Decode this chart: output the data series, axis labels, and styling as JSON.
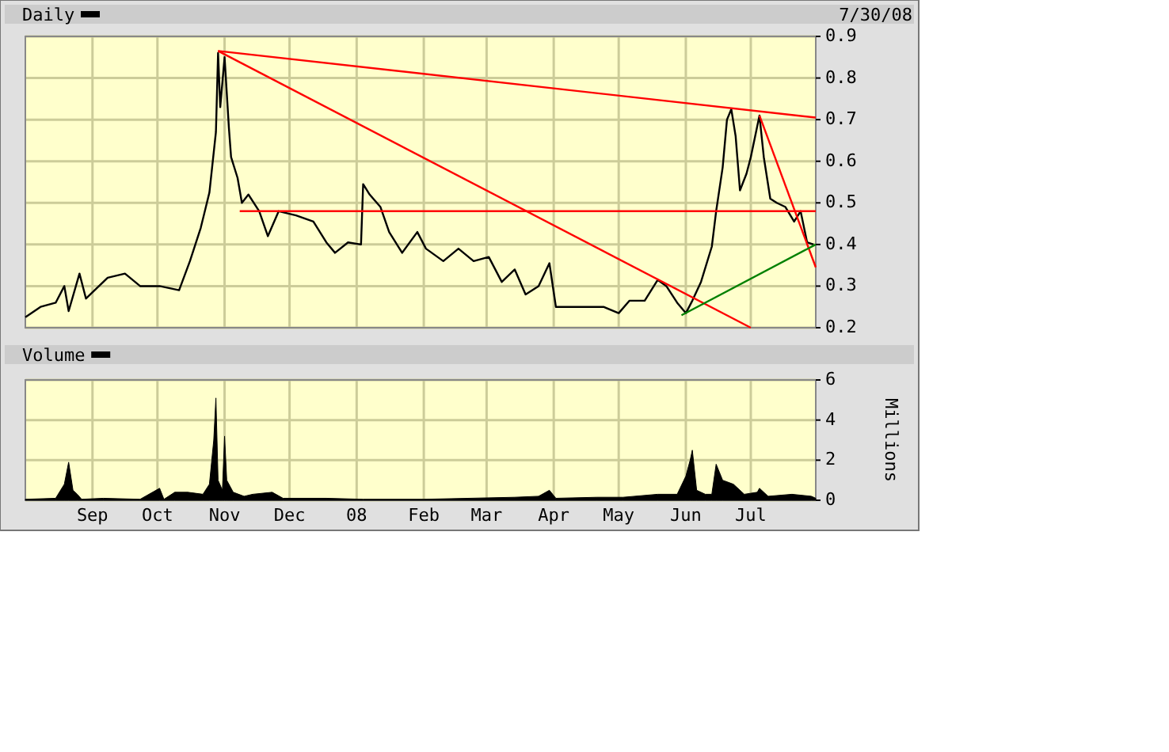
{
  "chart_data": [
    {
      "type": "line",
      "annotations": [
        "7/30/08"
      ],
      "legend": "top",
      "grid": true,
      "tick_labels": "y",
      "xlim": [
        "2007-08-01",
        "2008-07-31"
      ],
      "xticks": [
        {
          "value": "2007-09-01",
          "label": null
        },
        {
          "value": "2007-10-01",
          "label": null
        },
        {
          "value": "2007-11-01",
          "label": null
        },
        {
          "value": "2007-12-01",
          "label": null
        },
        {
          "value": "2008-01-01",
          "label": null
        },
        {
          "value": "2008-02-01",
          "label": null
        },
        {
          "value": "2008-03-01",
          "label": null
        },
        {
          "value": "2008-04-01",
          "label": null
        },
        {
          "value": "2008-05-01",
          "label": null
        },
        {
          "value": "2008-06-01",
          "label": null
        },
        {
          "value": "2008-07-01",
          "label": null
        }
      ],
      "ylim": [
        0.2,
        0.9
      ],
      "yticks": [
        0.2,
        0.3,
        0.4,
        0.5,
        0.6,
        0.7,
        0.8,
        0.9
      ],
      "series": [
        {
          "name": "Daily",
          "color": "#000000",
          "x": [
            "2007-08-01",
            "2007-08-08",
            "2007-08-15",
            "2007-08-19",
            "2007-08-21",
            "2007-08-26",
            "2007-08-29",
            "2007-09-08",
            "2007-09-16",
            "2007-09-23",
            "2007-10-02",
            "2007-10-11",
            "2007-10-16",
            "2007-10-21",
            "2007-10-25",
            "2007-10-28",
            "2007-10-29",
            "2007-10-30",
            "2007-11-01",
            "2007-11-03",
            "2007-11-04",
            "2007-11-07",
            "2007-11-09",
            "2007-11-12",
            "2007-11-17",
            "2007-11-21",
            "2007-11-26",
            "2007-12-04",
            "2007-12-12",
            "2007-12-18",
            "2007-12-22",
            "2007-12-28",
            "2008-01-03",
            "2008-01-04",
            "2008-01-07",
            "2008-01-12",
            "2008-01-16",
            "2008-01-22",
            "2008-01-29",
            "2008-02-02",
            "2008-02-10",
            "2008-02-17",
            "2008-02-24",
            "2008-03-02",
            "2008-03-08",
            "2008-03-14",
            "2008-03-19",
            "2008-03-25",
            "2008-03-30",
            "2008-04-02",
            "2008-04-09",
            "2008-04-17",
            "2008-04-24",
            "2008-05-01",
            "2008-05-06",
            "2008-05-13",
            "2008-05-19",
            "2008-05-23",
            "2008-05-28",
            "2008-06-01",
            "2008-06-04",
            "2008-06-08",
            "2008-06-13",
            "2008-06-15",
            "2008-06-18",
            "2008-06-20",
            "2008-06-22",
            "2008-06-24",
            "2008-06-26",
            "2008-06-29",
            "2008-07-01",
            "2008-07-05",
            "2008-07-07",
            "2008-07-10",
            "2008-07-13",
            "2008-07-17",
            "2008-07-21",
            "2008-07-24",
            "2008-07-27",
            "2008-07-30"
          ],
          "values": [
            0.225,
            0.25,
            0.26,
            0.3,
            0.24,
            0.33,
            0.27,
            0.32,
            0.33,
            0.3,
            0.3,
            0.29,
            0.36,
            0.44,
            0.525,
            0.67,
            0.86,
            0.73,
            0.85,
            0.68,
            0.61,
            0.56,
            0.5,
            0.52,
            0.48,
            0.42,
            0.48,
            0.47,
            0.455,
            0.405,
            0.38,
            0.405,
            0.4,
            0.545,
            0.52,
            0.49,
            0.43,
            0.38,
            0.43,
            0.39,
            0.36,
            0.39,
            0.36,
            0.37,
            0.31,
            0.34,
            0.28,
            0.3,
            0.355,
            0.25,
            0.25,
            0.25,
            0.25,
            0.235,
            0.265,
            0.265,
            0.315,
            0.3,
            0.26,
            0.235,
            0.265,
            0.31,
            0.395,
            0.48,
            0.585,
            0.7,
            0.725,
            0.66,
            0.53,
            0.57,
            0.61,
            0.71,
            0.61,
            0.51,
            0.5,
            0.49,
            0.455,
            0.48,
            0.405,
            0.4
          ]
        },
        {
          "type": "line",
          "color": "#ff0000",
          "x": [
            "2007-10-29",
            "2008-07-31"
          ],
          "values": [
            0.865,
            0.705
          ]
        },
        {
          "type": "line",
          "color": "#ff0000",
          "x": [
            "2007-10-29",
            "2008-07-01"
          ],
          "values": [
            0.865,
            0.2
          ]
        },
        {
          "type": "line",
          "color": "#ff0000",
          "x": [
            "2007-11-08",
            "2008-07-31"
          ],
          "values": [
            0.48,
            0.48
          ]
        },
        {
          "type": "line",
          "color": "#ff0000",
          "x": [
            "2008-07-05",
            "2008-07-31"
          ],
          "values": [
            0.71,
            0.345
          ]
        },
        {
          "type": "line",
          "color": "#008000",
          "x": [
            "2008-05-30",
            "2008-07-31"
          ],
          "values": [
            0.23,
            0.4
          ]
        }
      ]
    },
    {
      "type": "area",
      "legend": "top",
      "grid": true,
      "ylabel": "Millions",
      "xlim": [
        "2007-08-01",
        "2008-07-31"
      ],
      "xticks": [
        {
          "value": "2007-09-01",
          "label": "Sep"
        },
        {
          "value": "2007-10-01",
          "label": "Oct"
        },
        {
          "value": "2007-11-01",
          "label": "Nov"
        },
        {
          "value": "2007-12-01",
          "label": "Dec"
        },
        {
          "value": "2008-01-01",
          "label": "08"
        },
        {
          "value": "2008-02-01",
          "label": "Feb"
        },
        {
          "value": "2008-03-01",
          "label": "Mar"
        },
        {
          "value": "2008-04-01",
          "label": "Apr"
        },
        {
          "value": "2008-05-01",
          "label": "May"
        },
        {
          "value": "2008-06-01",
          "label": "Jun"
        },
        {
          "value": "2008-07-01",
          "label": "Jul"
        }
      ],
      "ylim": [
        0,
        6
      ],
      "yticks": [
        0,
        2,
        4,
        6
      ],
      "series": [
        {
          "name": "Volume",
          "color": "#000000",
          "x": [
            "2007-08-01",
            "2007-08-15",
            "2007-08-19",
            "2007-08-21",
            "2007-08-23",
            "2007-08-25",
            "2007-08-27",
            "2007-09-06",
            "2007-09-23",
            "2007-10-02",
            "2007-10-04",
            "2007-10-09",
            "2007-10-15",
            "2007-10-22",
            "2007-10-25",
            "2007-10-27",
            "2007-10-28",
            "2007-10-29",
            "2007-10-31",
            "2007-11-01",
            "2007-11-02",
            "2007-11-05",
            "2007-11-10",
            "2007-11-14",
            "2007-11-23",
            "2007-11-28",
            "2007-12-18",
            "2008-01-04",
            "2008-02-01",
            "2008-03-14",
            "2008-03-25",
            "2008-03-30",
            "2008-04-02",
            "2008-04-21",
            "2008-05-03",
            "2008-05-19",
            "2008-05-28",
            "2008-06-01",
            "2008-06-03",
            "2008-06-04",
            "2008-06-06",
            "2008-06-10",
            "2008-06-13",
            "2008-06-15",
            "2008-06-18",
            "2008-06-23",
            "2008-06-28",
            "2008-07-04",
            "2008-07-05",
            "2008-07-09",
            "2008-07-20",
            "2008-07-29",
            "2008-07-31"
          ],
          "values": [
            0.05,
            0.1,
            0.8,
            1.9,
            0.5,
            0.3,
            0.05,
            0.1,
            0.05,
            0.6,
            0.05,
            0.4,
            0.4,
            0.3,
            0.8,
            3.0,
            5.1,
            1.0,
            0.5,
            3.2,
            1.0,
            0.4,
            0.2,
            0.3,
            0.4,
            0.1,
            0.1,
            0.05,
            0.05,
            0.15,
            0.2,
            0.5,
            0.1,
            0.15,
            0.15,
            0.3,
            0.3,
            1.2,
            2.0,
            2.5,
            0.5,
            0.3,
            0.3,
            1.8,
            1.0,
            0.8,
            0.3,
            0.4,
            0.6,
            0.2,
            0.3,
            0.2,
            0.1
          ]
        }
      ]
    }
  ]
}
